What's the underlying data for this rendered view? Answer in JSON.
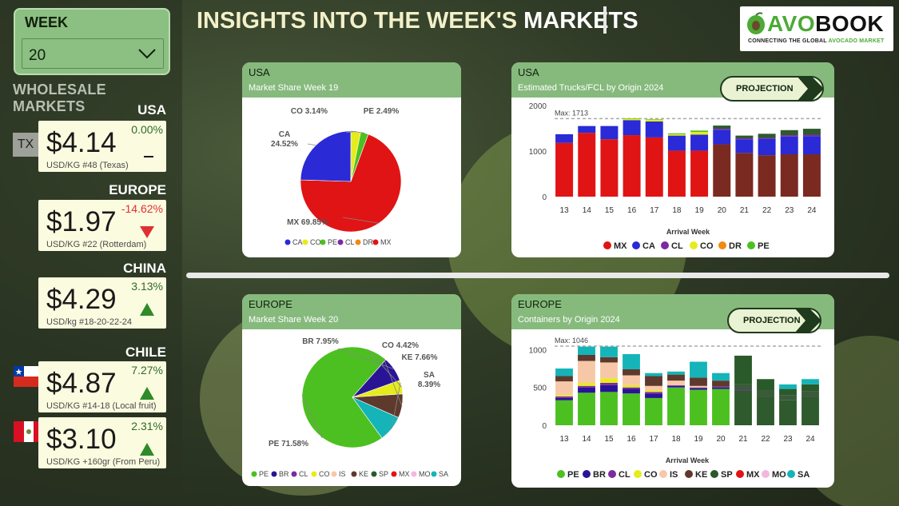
{
  "header": {
    "title_a": "INSIGHTS INTO THE WEEK'S ",
    "title_b": "MARKETS"
  },
  "logo": {
    "brand_a": "AVO",
    "brand_b": "BOOK",
    "tag_a": "CONNECTING THE GLOBAL ",
    "tag_b": "AVOCADO MARKET"
  },
  "week": {
    "label": "WEEK",
    "value": "20"
  },
  "wholesale_title": "WHOLESALE MARKETS",
  "badge_tx": "TX",
  "markets": [
    {
      "region": "USA",
      "price": "$4.14",
      "change": "0.00%",
      "trend": "flat",
      "note": "USD/KG #48 (Texas)"
    },
    {
      "region": "EUROPE",
      "price": "$1.97",
      "change": "-14.62%",
      "trend": "down",
      "note": "USD/KG #22 (Rotterdam)"
    },
    {
      "region": "CHINA",
      "price": "$4.29",
      "change": "3.13%",
      "trend": "up",
      "note": "USD/kg #18-20-22-24"
    },
    {
      "region": "CHILE",
      "price": "$4.87",
      "change": "7.27%",
      "trend": "up",
      "note": "USD/KG #14-18 (Local fruit)"
    },
    {
      "region": "",
      "price": "$3.10",
      "change": "2.31%",
      "trend": "up",
      "note": "USD/KG +160gr (From Peru)"
    }
  ],
  "colors": {
    "MX": "#e01414",
    "CA": "#2a2ad6",
    "CL": "#7d2aa0",
    "CO": "#e6ec1c",
    "DR": "#f08a10",
    "PE": "#4cc020",
    "BR": "#2a1496",
    "IS": "#f7c8a8",
    "KE": "#5e3a2c",
    "SP": "#2a5a2a",
    "MO": "#f0b8e0",
    "SA": "#14b4b8",
    "MX_proj": "#7a2a20",
    "PE_proj": "#2e5a2e"
  },
  "panels": {
    "usa_pie": {
      "region": "USA",
      "subtitle": "Market Share Week 19"
    },
    "usa_bar": {
      "region": "USA",
      "subtitle": "Estimated Trucks/FCL by Origin 2024",
      "projection": "PROJECTION"
    },
    "eu_pie": {
      "region": "EUROPE",
      "subtitle": "Market Share Week 20"
    },
    "eu_bar": {
      "region": "EUROPE",
      "subtitle": "Containers by Origin 2024",
      "projection": "PROJECTION"
    }
  },
  "chart_data": [
    {
      "type": "pie",
      "slices": [
        {
          "label": "MX",
          "value": 69.85,
          "text": "MX 69.85%"
        },
        {
          "label": "CA",
          "value": 24.52,
          "text": "CA 24.52%"
        },
        {
          "label": "CO",
          "value": 3.14,
          "text": "CO 3.14%"
        },
        {
          "label": "PE",
          "value": 2.49,
          "text": "PE 2.49%"
        }
      ],
      "legend": [
        "CA",
        "CO",
        "PE",
        "CL",
        "DR",
        "MX"
      ],
      "legend_placement": "bottom"
    },
    {
      "type": "bar",
      "stacked": true,
      "categories": [
        "13",
        "14",
        "15",
        "16",
        "17",
        "18",
        "19",
        "20",
        "21",
        "22",
        "23",
        "24"
      ],
      "series": [
        {
          "name": "MX",
          "values": [
            1180,
            1400,
            1260,
            1350,
            1300,
            1010,
            1010,
            1150,
            960,
            910,
            930,
            930
          ]
        },
        {
          "name": "CA",
          "values": [
            190,
            150,
            290,
            330,
            350,
            330,
            350,
            320,
            300,
            360,
            390,
            400
          ]
        },
        {
          "name": "CL",
          "values": [
            0,
            0,
            0,
            0,
            0,
            0,
            0,
            20,
            20,
            20,
            30,
            30
          ]
        },
        {
          "name": "CO",
          "values": [
            0,
            0,
            0,
            30,
            40,
            30,
            60,
            0,
            0,
            0,
            0,
            0
          ]
        },
        {
          "name": "DR",
          "values": [
            0,
            0,
            0,
            0,
            0,
            0,
            0,
            0,
            0,
            0,
            0,
            0
          ]
        },
        {
          "name": "PE",
          "values": [
            0,
            0,
            0,
            10,
            10,
            20,
            30,
            70,
            60,
            90,
            110,
            130
          ]
        }
      ],
      "projection_from": "20",
      "max_line": 1713,
      "max_label": "Max: 1713",
      "xlabel": "Arrival Week",
      "ylim": [
        0,
        2000
      ],
      "yticks": [
        0,
        1000,
        2000
      ],
      "legend_placement": "bottom"
    },
    {
      "type": "pie",
      "slices": [
        {
          "label": "PE",
          "value": 71.58,
          "text": "PE 71.58%"
        },
        {
          "label": "BR",
          "value": 7.95,
          "text": "BR 7.95%"
        },
        {
          "label": "CO",
          "value": 4.42,
          "text": "CO 4.42%"
        },
        {
          "label": "KE",
          "value": 7.66,
          "text": "KE 7.66%"
        },
        {
          "label": "SA",
          "value": 8.39,
          "text": "SA 8.39%"
        }
      ],
      "legend": [
        "PE",
        "BR",
        "CL",
        "CO",
        "IS",
        "KE",
        "SP",
        "MX",
        "MO",
        "SA"
      ],
      "legend_placement": "bottom"
    },
    {
      "type": "bar",
      "stacked": true,
      "categories": [
        "13",
        "14",
        "15",
        "16",
        "17",
        "18",
        "19",
        "20",
        "21",
        "22",
        "23",
        "24"
      ],
      "series": [
        {
          "name": "PE",
          "values": [
            330,
            430,
            440,
            420,
            360,
            500,
            470,
            480,
            460,
            370,
            330,
            370
          ]
        },
        {
          "name": "BR",
          "values": [
            30,
            70,
            90,
            60,
            60,
            20,
            20,
            20,
            0,
            0,
            0,
            0
          ]
        },
        {
          "name": "CL",
          "values": [
            20,
            20,
            30,
            20,
            20,
            10,
            10,
            10,
            10,
            0,
            0,
            0
          ]
        },
        {
          "name": "CO",
          "values": [
            20,
            40,
            60,
            30,
            20,
            0,
            0,
            0,
            0,
            0,
            0,
            0
          ]
        },
        {
          "name": "IS",
          "values": [
            180,
            290,
            210,
            130,
            60,
            60,
            20,
            0,
            0,
            0,
            0,
            0
          ]
        },
        {
          "name": "KE",
          "values": [
            70,
            80,
            70,
            80,
            130,
            80,
            110,
            80,
            70,
            90,
            70,
            80
          ]
        },
        {
          "name": "SP",
          "values": [
            0,
            0,
            0,
            0,
            0,
            0,
            0,
            0,
            380,
            150,
            80,
            90
          ]
        },
        {
          "name": "MX",
          "values": [
            0,
            0,
            0,
            0,
            0,
            0,
            0,
            0,
            0,
            0,
            0,
            0
          ]
        },
        {
          "name": "MO",
          "values": [
            0,
            0,
            0,
            0,
            0,
            0,
            0,
            0,
            0,
            0,
            0,
            0
          ]
        },
        {
          "name": "SA",
          "values": [
            100,
            110,
            140,
            200,
            40,
            40,
            210,
            100,
            0,
            0,
            60,
            70
          ]
        }
      ],
      "projection_from": "21",
      "max_line": 1046,
      "max_label": "Max: 1046",
      "xlabel": "Arrival Week",
      "ylim": [
        0,
        1046
      ],
      "yticks": [
        0,
        500,
        1000
      ],
      "legend_placement": "bottom"
    }
  ]
}
